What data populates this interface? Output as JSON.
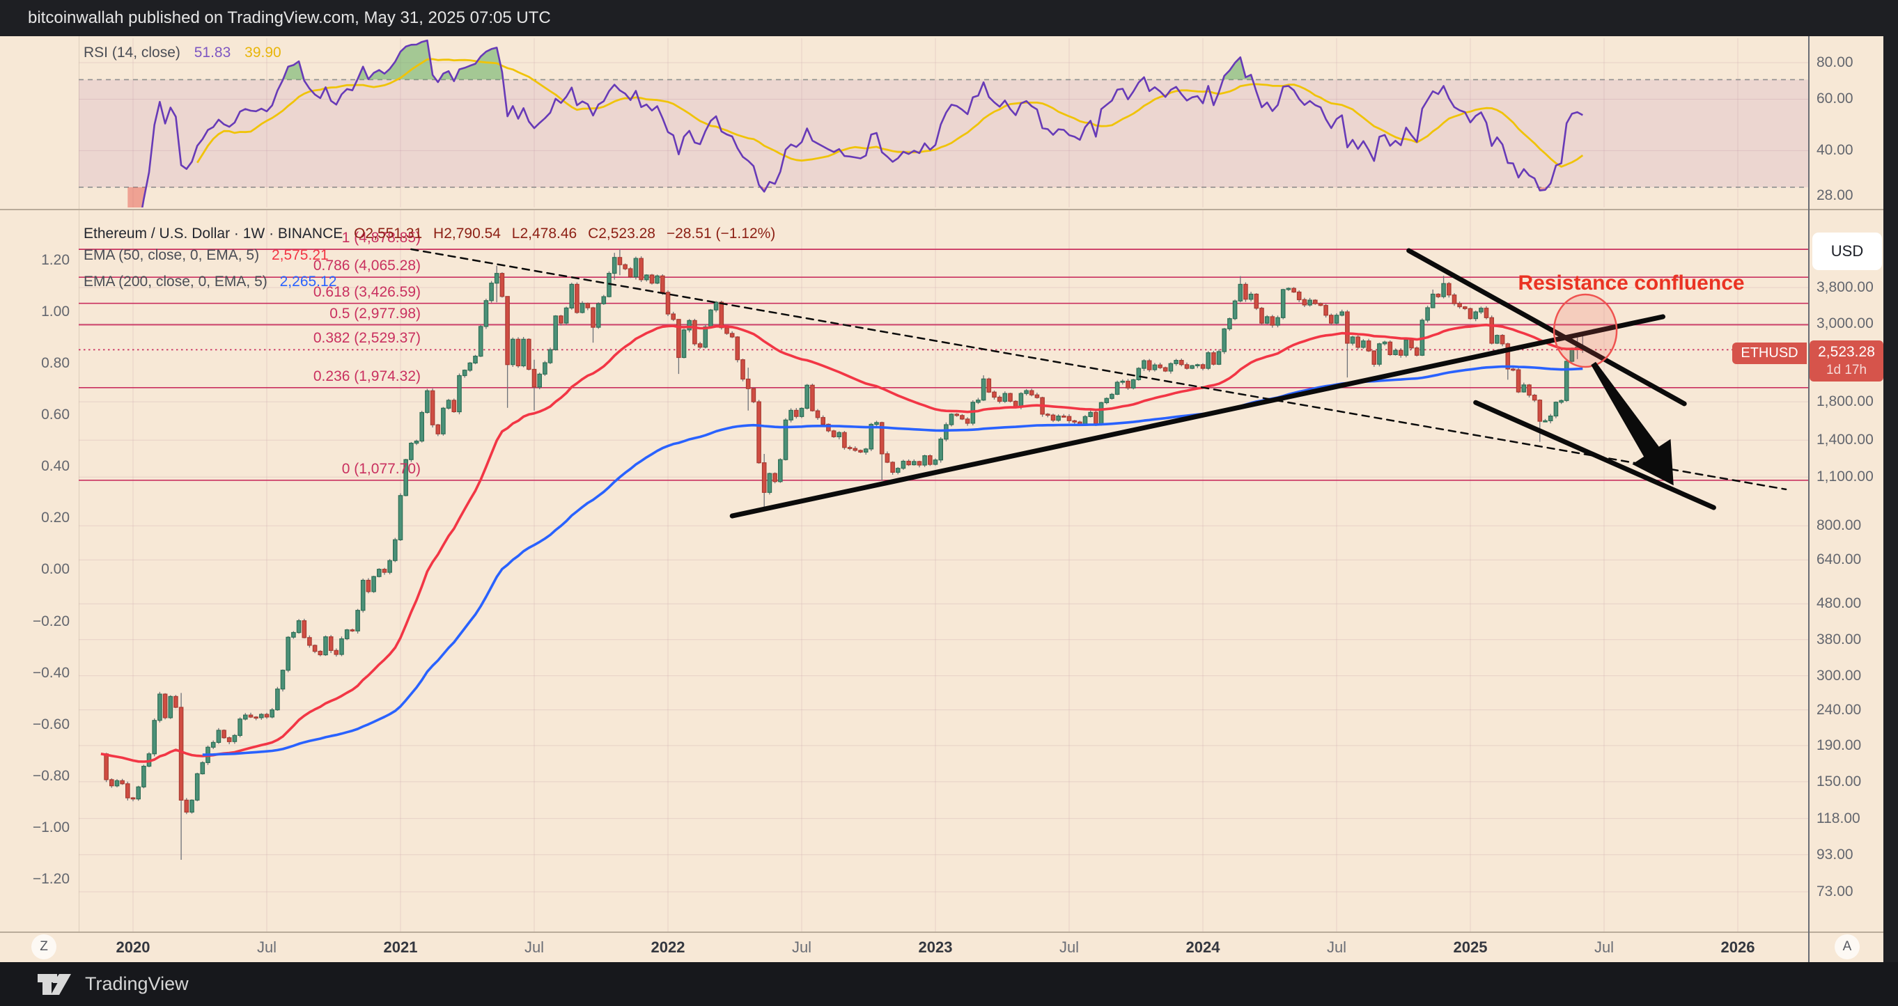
{
  "header": {
    "publish_line": "bitcoinwallah published on TradingView.com, May 31, 2025 07:05 UTC"
  },
  "footer": {
    "brand": "TradingView"
  },
  "axis_buttons": {
    "left": "Z",
    "right": "A"
  },
  "rsi_panel": {
    "label": "RSI (14, close)",
    "value_rsi": "51.83",
    "value_ma": "39.90",
    "ticks": [
      {
        "label": "80.00",
        "v": 80
      },
      {
        "label": "60.00",
        "v": 60
      },
      {
        "label": "40.00",
        "v": 40
      },
      {
        "label": "28.00",
        "v": 28
      }
    ]
  },
  "main_panel": {
    "symbol_line": {
      "title": "Ethereum / U.S. Dollar · 1W · BINANCE",
      "o": "O2,551.31",
      "h": "H2,790.54",
      "l": "L2,478.46",
      "c": "C2,523.28",
      "chg": "−28.51 (−1.12%)"
    },
    "ema50_label": "EMA (50, close, 0, EMA, 5)",
    "ema50_value": "2,575.21",
    "ema200_label": "EMA (200, close, 0, EMA, 5)",
    "ema200_value": "2,265.12",
    "annotation": "Resistance confluence",
    "usd_button": "USD",
    "price_badge": {
      "symbol": "ETHUSD",
      "price": "2,523.28",
      "countdown": "1d 17h"
    },
    "right_ticks": [
      {
        "label": "3,800.00",
        "p": 3800
      },
      {
        "label": "3,000.00",
        "p": 3000
      },
      {
        "label": "1,800.00",
        "p": 1800
      },
      {
        "label": "1,400.00",
        "p": 1400
      },
      {
        "label": "1,100.00",
        "p": 1100
      },
      {
        "label": "800.00",
        "p": 800
      },
      {
        "label": "640.00",
        "p": 640
      },
      {
        "label": "480.00",
        "p": 480
      },
      {
        "label": "380.00",
        "p": 380
      },
      {
        "label": "300.00",
        "p": 300
      },
      {
        "label": "240.00",
        "p": 240
      },
      {
        "label": "190.00",
        "p": 190
      },
      {
        "label": "150.00",
        "p": 150
      },
      {
        "label": "118.00",
        "p": 118
      },
      {
        "label": "93.00",
        "p": 93
      },
      {
        "label": "73.00",
        "p": 73
      }
    ],
    "left_ticks": [
      {
        "label": "1.20",
        "v": 1.2
      },
      {
        "label": "1.00",
        "v": 1.0
      },
      {
        "label": "0.80",
        "v": 0.8
      },
      {
        "label": "0.60",
        "v": 0.6
      },
      {
        "label": "0.40",
        "v": 0.4
      },
      {
        "label": "0.20",
        "v": 0.2
      },
      {
        "label": "0.00",
        "v": 0.0
      },
      {
        "label": "−0.20",
        "v": -0.2
      },
      {
        "label": "−0.40",
        "v": -0.4
      },
      {
        "label": "−0.60",
        "v": -0.6
      },
      {
        "label": "−0.80",
        "v": -0.8
      },
      {
        "label": "−1.00",
        "v": -1.0
      },
      {
        "label": "−1.20",
        "v": -1.2
      }
    ],
    "time_ticks": [
      {
        "label": "2020",
        "t": 2020,
        "major": true
      },
      {
        "label": "Jul",
        "t": 2020.5,
        "major": false
      },
      {
        "label": "2021",
        "t": 2021,
        "major": true
      },
      {
        "label": "Jul",
        "t": 2021.5,
        "major": false
      },
      {
        "label": "2022",
        "t": 2022,
        "major": true
      },
      {
        "label": "Jul",
        "t": 2022.5,
        "major": false
      },
      {
        "label": "2023",
        "t": 2023,
        "major": true
      },
      {
        "label": "Jul",
        "t": 2023.5,
        "major": false
      },
      {
        "label": "2024",
        "t": 2024,
        "major": true
      },
      {
        "label": "Jul",
        "t": 2024.5,
        "major": false
      },
      {
        "label": "2025",
        "t": 2025,
        "major": true
      },
      {
        "label": "Jul",
        "t": 2025.5,
        "major": false
      },
      {
        "label": "2026",
        "t": 2026,
        "major": true
      }
    ]
  },
  "colors": {
    "up_body": "#4b9178",
    "up_border": "#2e6e55",
    "down_body": "#cf4d42",
    "down_border": "#a83a31",
    "wick": "#6d7178",
    "ema50": "#f23645",
    "ema200": "#2962ff",
    "fib": "#c9305f",
    "rsi_line": "#673ab7",
    "rsi_ma": "#f0c308",
    "rsi_band": "rgba(150,60,160,0.10)",
    "rsi_over_fill": "rgba(96,173,94,0.55)",
    "rsi_under_fill": "rgba(229,77,66,0.45)",
    "badge": "#d6544b",
    "annotation": "#ea3323",
    "drawing": "#0b0b0b",
    "grid": "rgba(205,170,175,0.38)",
    "circle_stroke": "#ef5350",
    "circle_fill": "rgba(239,83,80,0.18)"
  },
  "chart_data": {
    "type": "candlestick",
    "symbol": "ETHUSD",
    "timeframe": "1W",
    "x_unit": "decimal_year",
    "price_scale": "log",
    "last_bar": {
      "open": 2551.31,
      "high": 2790.54,
      "low": 2478.46,
      "close": 2523.28,
      "change": -28.51,
      "change_pct": -1.12
    },
    "t_start": 2019.88,
    "t_step": 0.02,
    "closes": [
      180,
      152,
      146,
      151,
      148,
      135,
      134,
      145,
      166,
      180,
      224,
      266,
      228,
      262,
      244,
      133,
      123,
      133,
      158,
      170,
      188,
      194,
      210,
      200,
      195,
      203,
      226,
      232,
      229,
      228,
      233,
      229,
      240,
      275,
      311,
      386,
      398,
      430,
      385,
      366,
      352,
      344,
      387,
      354,
      345,
      382,
      405,
      402,
      460,
      560,
      520,
      574,
      602,
      590,
      637,
      730,
      975,
      1233,
      1373,
      1392,
      1678,
      1934,
      1548,
      1459,
      1726,
      1817,
      1686,
      2136,
      2213,
      2320,
      2426,
      2946,
      3488,
      3910,
      4168,
      3585,
      2296,
      2710,
      2277,
      2710,
      2226,
      1982,
      2157,
      2324,
      2531,
      3156,
      3012,
      3324,
      3880,
      3227,
      3426,
      3329,
      2930,
      3418,
      3580,
      4170,
      4626,
      4413,
      4297,
      4074,
      4596,
      3999,
      4124,
      3910,
      4100,
      3683,
      3196,
      3085,
      2405,
      2880,
      3063,
      2630,
      2572,
      2938,
      3282,
      3452,
      2922,
      2815,
      2750,
      2370,
      2088,
      1962,
      1800,
      1208,
      995,
      1126,
      1068,
      1233,
      1598,
      1702,
      1635,
      1725,
      2006,
      1697,
      1624,
      1554,
      1488,
      1432,
      1472,
      1335,
      1326,
      1310,
      1295,
      1322,
      1553,
      1572,
      1281,
      1212,
      1135,
      1165,
      1220,
      1192,
      1218,
      1190,
      1265,
      1195,
      1230,
      1410,
      1550,
      1660,
      1646,
      1608,
      1564,
      1794,
      1820,
      2090,
      1918,
      1855,
      1805,
      1900,
      1806,
      1740,
      1900,
      1936,
      1883,
      1850,
      1660,
      1650,
      1595,
      1640,
      1635,
      1590,
      1577,
      1553,
      1634,
      1680,
      1560,
      1790,
      1840,
      1890,
      2045,
      2060,
      1970,
      2080,
      2240,
      2355,
      2220,
      2290,
      2250,
      2200,
      2310,
      2360,
      2295,
      2240,
      2280,
      2295,
      2240,
      2480,
      2300,
      2500,
      2900,
      3100,
      3480,
      3880,
      3520,
      3640,
      3320,
      3010,
      3140,
      2970,
      3120,
      3750,
      3780,
      3690,
      3510,
      3390,
      3500,
      3420,
      3380,
      3170,
      3010,
      3170,
      3240,
      2640,
      2750,
      2570,
      2680,
      2510,
      2300,
      2630,
      2660,
      2450,
      2520,
      2440,
      2700,
      2560,
      2440,
      3070,
      3330,
      3640,
      3580,
      3900,
      3620,
      3420,
      3350,
      3310,
      3100,
      3240,
      3320,
      3120,
      2640,
      2780,
      2630,
      2230,
      2220,
      1920,
      2010,
      1880,
      1820,
      1585,
      1590,
      1640,
      1795,
      1815,
      2345,
      2540,
      2575,
      2523
    ],
    "wick_overrides": {
      "15": [
        268,
        90
      ],
      "74": [
        4380,
        3450
      ],
      "76": [
        2870,
        1730
      ],
      "81": [
        2370,
        1700
      ],
      "92": [
        3350,
        2650
      ],
      "96": [
        4770,
        4000
      ],
      "97": [
        4878.85,
        4120
      ],
      "108": [
        3090,
        2160
      ],
      "121": [
        2250,
        1700
      ],
      "124": [
        1280,
        880
      ],
      "146": [
        1580,
        1074
      ],
      "165": [
        2140,
        1810
      ],
      "213": [
        4093,
        3450
      ],
      "233": [
        3280,
        2110
      ],
      "249": [
        3750,
        3320
      ],
      "251": [
        4100,
        3540
      ],
      "263": [
        2650,
        2080
      ],
      "269": [
        1830,
        1385
      ],
      "276": [
        2740,
        2380
      ],
      "277": [
        2790.54,
        2478.46
      ]
    },
    "fib_levels": [
      {
        "label": "1 (4,878.85)",
        "price": 4878.85,
        "style": "solid"
      },
      {
        "label": "0.786 (4,065.28)",
        "price": 4065.28,
        "style": "solid"
      },
      {
        "label": "0.618 (3,426.59)",
        "price": 3426.59,
        "style": "solid"
      },
      {
        "label": "0.5 (2,977.98)",
        "price": 2977.98,
        "style": "solid"
      },
      {
        "label": "0.382 (2,529.37)",
        "price": 2529.37,
        "style": "dotted"
      },
      {
        "label": "0.236 (1,974.32)",
        "price": 1974.32,
        "style": "solid"
      },
      {
        "label": "0 (1,077.70)",
        "price": 1077.7,
        "style": "solid"
      }
    ],
    "trendlines": [
      {
        "name": "descending-dashed",
        "t1": 2021.04,
        "p1": 4882,
        "t2": 2026.18,
        "p2": 1015,
        "style": "dashed",
        "width": 2.5
      },
      {
        "name": "ascending-support",
        "t1": 2022.24,
        "p1": 853,
        "t2": 2025.72,
        "p2": 3140,
        "style": "solid",
        "width": 7
      },
      {
        "name": "descending-resistance-1",
        "t1": 2024.77,
        "p1": 4837,
        "t2": 2025.8,
        "p2": 1777,
        "style": "solid",
        "width": 7
      },
      {
        "name": "descending-resistance-2",
        "t1": 2025.02,
        "p1": 1791,
        "t2": 2025.91,
        "p2": 901,
        "style": "solid",
        "width": 7
      }
    ],
    "arrow": {
      "t1": 2025.46,
      "p1": 2313,
      "t2": 2025.76,
      "p2": 1042
    },
    "highlight_circle": {
      "t": 2025.43,
      "price": 2865,
      "rx": 45,
      "ry": 52
    },
    "indicators": [
      {
        "name": "EMA",
        "params": "(50, close, 0, EMA, 5)",
        "last": 2575.21
      },
      {
        "name": "EMA",
        "params": "(200, close, 0, EMA, 5)",
        "last": 2265.12
      },
      {
        "name": "RSI",
        "params": "(14, close)",
        "last": 51.83,
        "ma_last": 39.9,
        "pane_ticks": [
          80,
          60,
          40,
          28
        ],
        "band": [
          30,
          70
        ]
      }
    ]
  }
}
